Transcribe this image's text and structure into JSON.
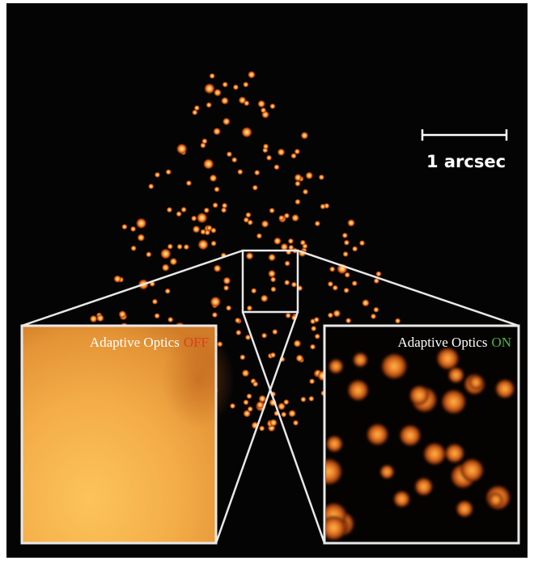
{
  "scale_bar": {
    "label": "1 arcsec"
  },
  "panels": [
    {
      "title": "Adaptive Optics",
      "state": "OFF"
    },
    {
      "title": "Adaptive Optics",
      "state": "ON"
    }
  ]
}
